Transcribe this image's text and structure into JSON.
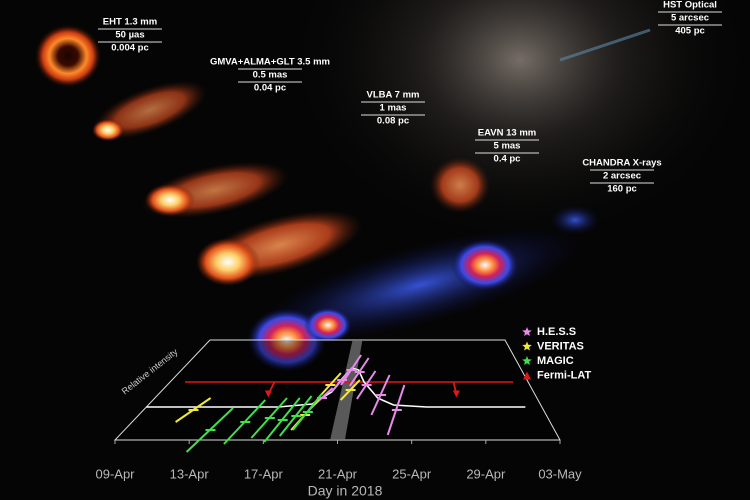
{
  "panels": [
    {
      "label": "EHT 1.3 mm",
      "scale": "50 µas",
      "distance": "0.004 pc"
    },
    {
      "label": "GMVA+ALMA+GLT 3.5 mm",
      "scale": "0.5 mas",
      "distance": "0.04 pc"
    },
    {
      "label": "VLBA 7 mm",
      "scale": "1 mas",
      "distance": "0.08 pc"
    },
    {
      "label": "EAVN 13 mm",
      "scale": "5 mas",
      "distance": "0.4 pc"
    },
    {
      "label": "CHANDRA X-rays",
      "scale": "2 arcsec",
      "distance": "160 pc"
    },
    {
      "label": "HST Optical",
      "scale": "5 arcsec",
      "distance": "405 pc"
    }
  ],
  "chart_data": {
    "type": "scatter",
    "xlabel": "Day in 2018",
    "ylabel": "Relative intensity",
    "xlim": [
      9,
      33
    ],
    "ylim": [
      0,
      1
    ],
    "xticks": [
      {
        "value": 9,
        "label": "09-Apr"
      },
      {
        "value": 13,
        "label": "13-Apr"
      },
      {
        "value": 17,
        "label": "17-Apr"
      },
      {
        "value": 21,
        "label": "21-Apr"
      },
      {
        "value": 25,
        "label": "25-Apr"
      },
      {
        "value": 29,
        "label": "29-Apr"
      },
      {
        "value": 33,
        "label": "03-May"
      }
    ],
    "highlight_span": [
      20.6,
      21.4
    ],
    "model": {
      "color": "#ffffff",
      "x": [
        9,
        17,
        19,
        20,
        20.5,
        21,
        21.5,
        22,
        23,
        24,
        26,
        32
      ],
      "values": [
        0.33,
        0.33,
        0.36,
        0.48,
        0.62,
        0.72,
        0.7,
        0.58,
        0.42,
        0.35,
        0.33,
        0.33
      ]
    },
    "series": [
      {
        "name": "H.E.S.S",
        "color": "#e58be8",
        "marker": "star",
        "x": [
          19.5,
          20.5,
          21,
          21.6,
          22.2,
          23.2,
          24.2
        ],
        "values": [
          0.42,
          0.6,
          0.7,
          0.68,
          0.55,
          0.45,
          0.3
        ],
        "errors": [
          0.1,
          0.12,
          0.15,
          0.14,
          0.14,
          0.2,
          0.25
        ]
      },
      {
        "name": "VERITAS",
        "color": "#f2e83a",
        "marker": "star",
        "x": [
          12,
          18.8,
          19.8,
          21.2
        ],
        "values": [
          0.3,
          0.25,
          0.55,
          0.5
        ],
        "errors": [
          0.12,
          0.15,
          0.12,
          0.1
        ]
      },
      {
        "name": "MAGIC",
        "color": "#3fe04a",
        "marker": "star",
        "x": [
          13.8,
          15.5,
          16.8,
          17.6,
          18.3,
          18.9
        ],
        "values": [
          0.1,
          0.18,
          0.22,
          0.2,
          0.24,
          0.28
        ],
        "errors": [
          0.22,
          0.22,
          0.2,
          0.22,
          0.2,
          0.18
        ]
      },
      {
        "name": "Fermi-LAT",
        "color": "#e01818",
        "marker": "triangle",
        "flux_level": 0.58,
        "x": [
          16,
          28
        ],
        "values": [
          0.58,
          0.58
        ],
        "errors": [
          0.12,
          0.12
        ]
      }
    ]
  }
}
